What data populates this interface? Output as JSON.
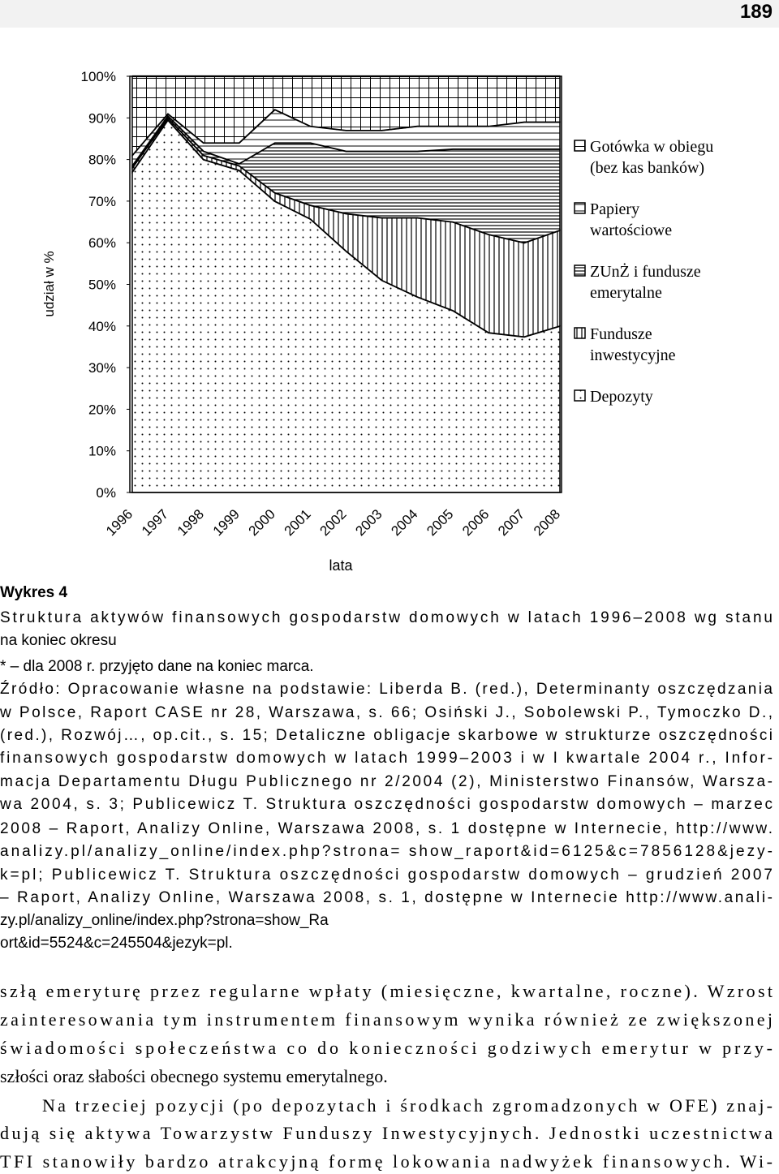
{
  "page_number": "189",
  "chart_data": {
    "type": "stacked_area",
    "y_label": "udział w %",
    "x_label": "lata",
    "categories": [
      "1996",
      "1997",
      "1998",
      "1999",
      "2000",
      "2001",
      "2002",
      "2003",
      "2004",
      "2005",
      "2006",
      "2007",
      "2008"
    ],
    "ylim": [
      0,
      100
    ],
    "yticks": [
      {
        "value": 0,
        "label": "0%"
      },
      {
        "value": 10,
        "label": "10%"
      },
      {
        "value": 20,
        "label": "20%"
      },
      {
        "value": 30,
        "label": "30%"
      },
      {
        "value": 40,
        "label": "40%"
      },
      {
        "value": 50,
        "label": "50%"
      },
      {
        "value": 60,
        "label": "60%"
      },
      {
        "value": 70,
        "label": "70%"
      },
      {
        "value": 80,
        "label": "80%"
      },
      {
        "value": 90,
        "label": "90%"
      },
      {
        "value": 100,
        "label": "100%"
      }
    ],
    "legend": "right",
    "series": [
      {
        "name": "Depozyty",
        "color": "#000000",
        "pattern": "dots",
        "values": [
          77,
          89.5,
          80,
          77.4,
          70,
          65.7,
          58,
          51,
          47,
          43.7,
          38.4,
          37.4,
          40
        ]
      },
      {
        "name": "Fundusze inwestycyjne",
        "color": "#000000",
        "pattern": "vlines",
        "values": [
          1,
          0.5,
          1,
          1.1,
          2,
          3.3,
          9,
          15,
          19,
          21.3,
          23.6,
          22.6,
          23
        ]
      },
      {
        "name": "ZUnŻ i fundusze emerytalne",
        "color": "#000000",
        "pattern": "hdense",
        "values": [
          0.5,
          0.5,
          1,
          0.5,
          12,
          15,
          15,
          16,
          16,
          17.5,
          20.5,
          22.5,
          19.5
        ]
      },
      {
        "name": "Papiery wartościowe",
        "color": "#000000",
        "pattern": "hsparse",
        "values": [
          2.5,
          0.5,
          2,
          5,
          8,
          4,
          5,
          5,
          6,
          5.5,
          5.5,
          6.5,
          6.5
        ]
      },
      {
        "name": "Gotówka w obiegu (bez kas banków)",
        "color": "#000000",
        "pattern": "grid",
        "values": [
          19,
          9,
          16,
          16,
          8,
          12,
          13,
          13,
          12,
          12,
          12,
          11,
          11
        ]
      }
    ]
  },
  "caption": {
    "label": "Wykres 4",
    "lines": [
      "Struktura aktywów finansowych gospodarstw domowych w latach 1996–2008 wg stanu",
      "na koniec okresu",
      "* – dla 2008 r. przyjęto dane na koniec marca.",
      "Źródło: Opracowanie własne na podstawie: Liberda B. (red.), Determinanty oszczędzania",
      "w Polsce, Raport CASE nr 28, Warszawa, s. 66; Osiński J., Sobolewski P., Tymoczko D.,",
      "(red.), Rozwój…, op.cit., s. 15; Detaliczne obligacje skarbowe w strukturze oszczędności",
      "finansowych gospodarstw domowych w latach 1999–2003 i w I kwartale 2004 r., Infor-",
      "macja Departamentu Długu Publicznego nr 2/2004 (2), Ministerstwo Finansów, Warsza-",
      "wa 2004, s. 3; Publicewicz T. Struktura oszczędności gospodarstw domowych – marzec",
      "2008 – Raport, Analizy Online, Warszawa 2008, s. 1 dostępne w Internecie, http://www.",
      "analizy.pl/analizy_online/index.php?strona=   show_raport&id=6125&c=7856128&jezy-",
      "k=pl; Publicewicz T. Struktura oszczędności gospodarstw domowych – grudzień 2007",
      "– Raport, Analizy Online, Warszawa 2008, s. 1, dostępne w Internecie http://www.anali-",
      "zy.pl/analizy_online/index.php?strona=show_Ra",
      "ort&id=5524&c=245504&jezyk=pl."
    ]
  },
  "body_lines": [
    "szłą emeryturę przez regularne wpłaty (miesięczne, kwartalne, roczne). Wzrost",
    "zainteresowania tym instrumentem finansowym wynika również ze zwiększonej",
    "świadomości społeczeństwa co do konieczności godziwych emerytur w przy-",
    "szłości oraz słabości obecnego systemu emerytalnego.",
    "Na trzeciej pozycji (po depozytach i środkach zgromadzonych w OFE) znaj-",
    "dują się aktywa Towarzystw Funduszy Inwestycyjnych. Jednostki uczestnictwa",
    "TFI stanowiły bardzo atrakcyjną formę lokowania nadwyżek finansowych. Wi-"
  ]
}
